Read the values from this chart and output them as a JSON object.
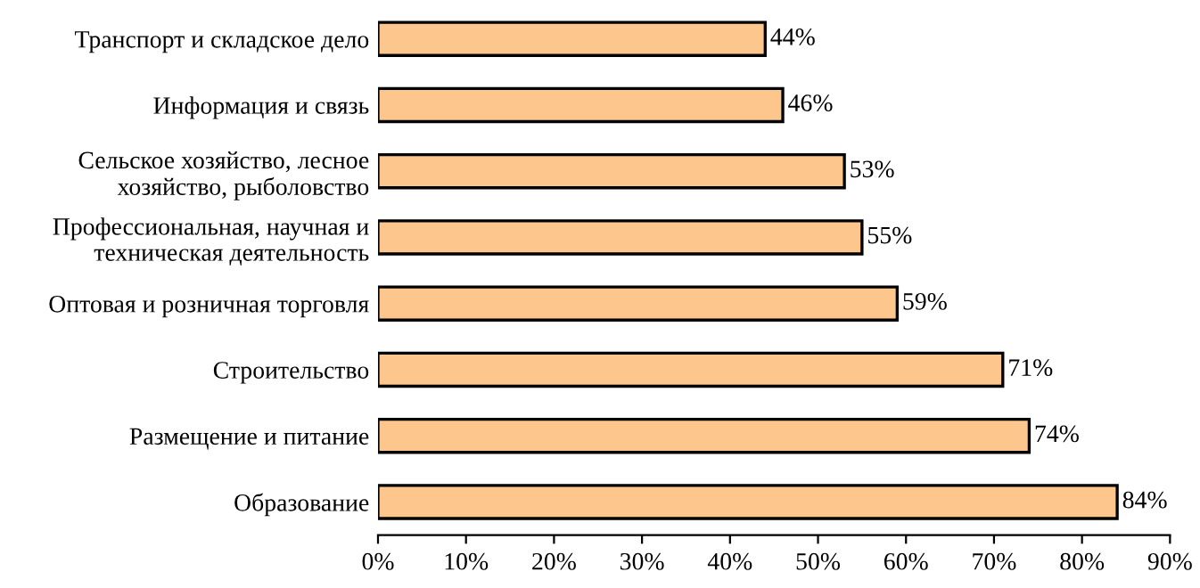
{
  "chart_data": {
    "type": "bar",
    "orientation": "horizontal",
    "categories": [
      "Транспорт и складское дело",
      "Информация и связь",
      "Сельское хозяйство, лесное\nхозяйство, рыболовство",
      "Профессиональная, научная и\nтехническая деятельность",
      "Оптовая и розничная торговля",
      "Строительство",
      "Размещение и питание",
      "Образование"
    ],
    "values": [
      44,
      46,
      53,
      55,
      59,
      71,
      74,
      84
    ],
    "value_labels": [
      "44%",
      "46%",
      "53%",
      "55%",
      "59%",
      "71%",
      "74%",
      "84%"
    ],
    "color": "#fcc68c",
    "xlim": [
      0,
      90
    ],
    "xticks": [
      {
        "value": 0,
        "label": "0%"
      },
      {
        "value": 10,
        "label": "10%"
      },
      {
        "value": 20,
        "label": "20%"
      },
      {
        "value": 30,
        "label": "30%"
      },
      {
        "value": 40,
        "label": "40%"
      },
      {
        "value": 50,
        "label": "50%"
      },
      {
        "value": 60,
        "label": "60%"
      },
      {
        "value": 70,
        "label": "70%"
      },
      {
        "value": 80,
        "label": "80%"
      },
      {
        "value": 90,
        "label": "90%"
      }
    ],
    "grid": false
  }
}
